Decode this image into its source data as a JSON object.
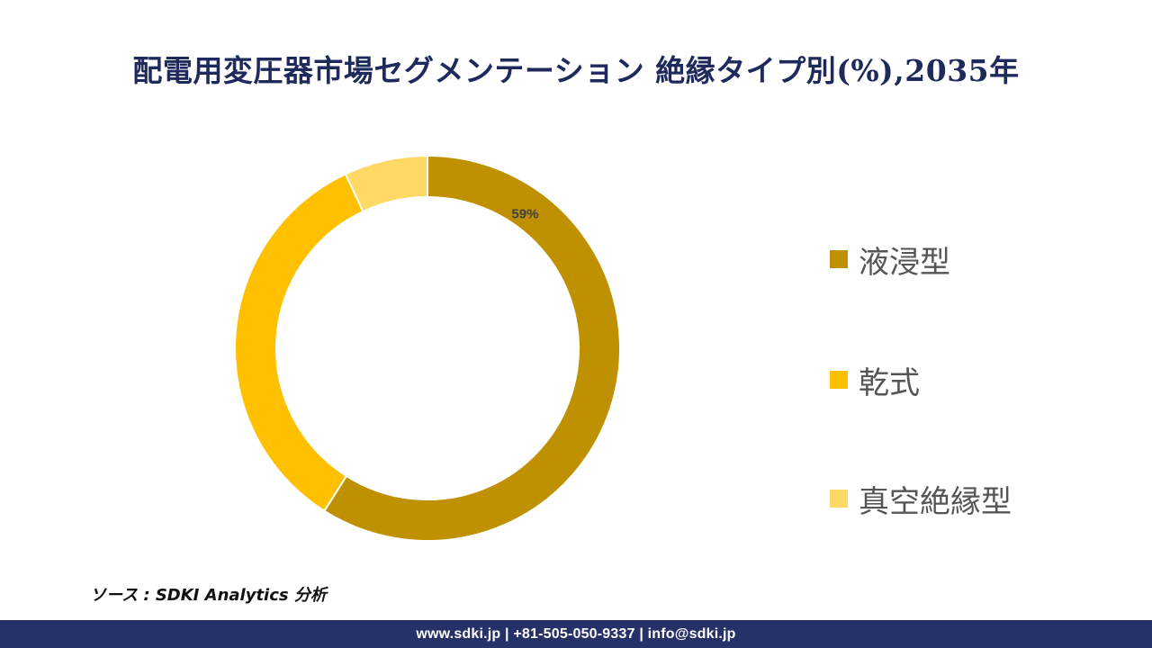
{
  "header": {
    "title": "配電用変圧器市場セグメンテーション 絶縁タイプ別(%),2035年"
  },
  "chart_data": {
    "type": "pie",
    "variant": "donut",
    "title": "配電用変圧器市場セグメンテーション 絶縁タイプ別(%),2035年",
    "categories": [
      "液浸型",
      "乾式",
      "真空絶縁型"
    ],
    "values": [
      59,
      34,
      7
    ],
    "colors": [
      "#bf9000",
      "#ffc000",
      "#ffd966"
    ],
    "data_labels": [
      "59%",
      "",
      ""
    ],
    "legend_position": "right"
  },
  "source": {
    "text": "ソース : SDKI Analytics 分析"
  },
  "footer": {
    "contact": "www.sdki.jp | +81-505-050-9337 | info@sdki.jp"
  }
}
